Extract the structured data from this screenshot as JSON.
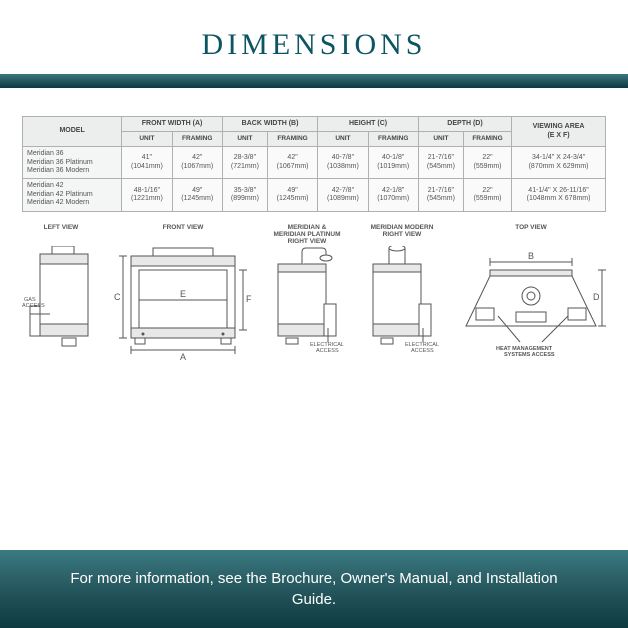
{
  "title": {
    "text": "DIMENSIONS",
    "color": "#0d5562",
    "fontsize_pt": 28
  },
  "gradient": {
    "from": "#3a7a82",
    "to": "#0d3a40"
  },
  "table": {
    "model_header": "MODEL",
    "group_headers": [
      "FRONT WIDTH (A)",
      "BACK WIDTH (B)",
      "HEIGHT (C)",
      "DEPTH (D)"
    ],
    "viewing_header": "VIEWING AREA\n(E X F)",
    "sub_headers": [
      "UNIT",
      "FRAMING"
    ],
    "rows": [
      {
        "model": "Meridian 36\nMeridian 36 Platinum\nMeridian 36 Modern",
        "cells": [
          "41\"\n(1041mm)",
          "42\"\n(1067mm)",
          "28-3/8\"\n(721mm)",
          "42\"\n(1067mm)",
          "40-7/8\"\n(1038mm)",
          "40-1/8\"\n(1019mm)",
          "21-7/16\"\n(545mm)",
          "22\"\n(559mm)",
          "34-1/4\" X 24-3/4\"\n(870mm X 629mm)"
        ]
      },
      {
        "model": "Meridian 42\nMeridian 42 Platinum\nMeridian 42 Modern",
        "cells": [
          "48-1/16\"\n(1221mm)",
          "49\"\n(1245mm)",
          "35-3/8\"\n(899mm)",
          "49\"\n(1245mm)",
          "42-7/8\"\n(1089mm)",
          "42-1/8\"\n(1070mm)",
          "21-7/16\"\n(545mm)",
          "22\"\n(559mm)",
          "41-1/4\" X 26-11/16\"\n(1048mm X 678mm)"
        ]
      }
    ]
  },
  "views": {
    "left": "LEFT VIEW",
    "front": "FRONT VIEW",
    "right1": "MERIDIAN &\nMERIDIAN PLATINUM\nRIGHT VIEW",
    "right2": "MERIDIAN MODERN\nRIGHT VIEW",
    "top": "TOP VIEW"
  },
  "labels": {
    "gas_access": "GAS\nACCESS",
    "electrical_access": "ELECTRICAL\nACCESS",
    "heat_mgmt": "HEAT MANAGEMENT\nSYSTEMS ACCESS"
  },
  "dim_letters": {
    "A": "A",
    "B": "B",
    "C": "C",
    "D": "D",
    "E": "E",
    "F": "F"
  },
  "footer": "For more information, see the Brochure, Owner's Manual, and Installation Guide."
}
